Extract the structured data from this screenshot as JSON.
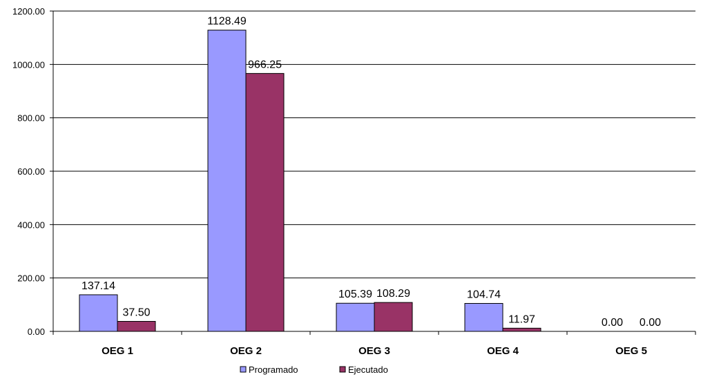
{
  "chart_data": {
    "type": "bar",
    "categories": [
      "OEG 1",
      "OEG 2",
      "OEG 3",
      "OEG 4",
      "OEG 5"
    ],
    "series": [
      {
        "name": "Programado",
        "color": "#9999ff",
        "values": [
          137.14,
          1128.49,
          105.39,
          104.74,
          0.0
        ],
        "labels": [
          "137.14",
          "1128.49",
          "105.39",
          "104.74",
          "0.00"
        ]
      },
      {
        "name": "Ejecutado",
        "color": "#993366",
        "values": [
          37.5,
          966.25,
          108.29,
          11.97,
          0.0
        ],
        "labels": [
          "37.50",
          "966.25",
          "108.29",
          "11.97",
          "0.00"
        ]
      }
    ],
    "ylim": [
      0,
      1200
    ],
    "yticks": [
      0,
      200,
      400,
      600,
      800,
      1000,
      1200
    ],
    "ytick_labels": [
      "0.00",
      "200.00",
      "400.00",
      "600.00",
      "800.00",
      "1000.00",
      "1200.00"
    ],
    "grid": true,
    "legend_position": "bottom",
    "title": "",
    "xlabel": "",
    "ylabel": ""
  }
}
